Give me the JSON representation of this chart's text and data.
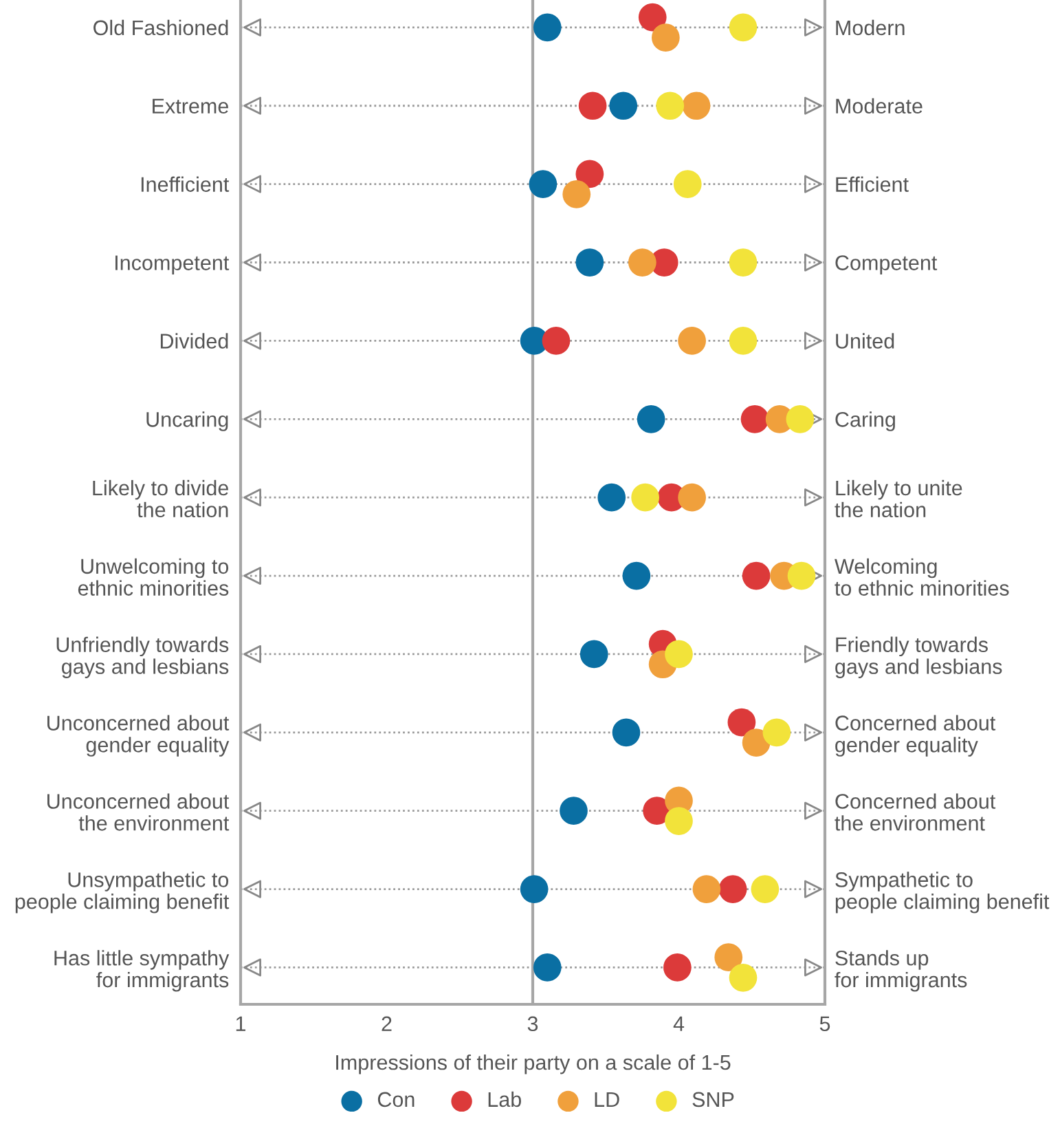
{
  "chart_data": {
    "type": "scatter",
    "orientation": "horizontal",
    "categories": [
      "Old Fashioned",
      "Extreme",
      "Inefficient",
      "Incompetent",
      "Divided",
      "Uncaring",
      "Likely to divide\nthe nation",
      "Unwelcoming to\nethnic minorities",
      "Unfriendly towards\ngays and lesbians",
      "Unconcerned about\ngender equality",
      "Unconcerned about\nthe environment",
      "Unsympathetic to\npeople claiming benefit",
      "Has little sympathy\nfor immigrants"
    ],
    "y2_categories": [
      "Modern",
      "Moderate",
      "Efficient",
      "Competent",
      "United",
      "Caring",
      "Likely to unite\nthe nation",
      "Welcoming\nto ethnic minorities",
      "Friendly towards\ngays and lesbians",
      "Concerned about\ngender equality",
      "Concerned about\nthe environment",
      "Sympathetic to\npeople claiming benefit",
      "Stands up\nfor immigrants"
    ],
    "series": [
      {
        "name": "Con",
        "color": "#0a6fa3",
        "values": [
          3.1,
          3.62,
          3.07,
          3.39,
          3.01,
          3.81,
          3.54,
          3.71,
          3.42,
          3.64,
          3.28,
          3.01,
          3.1
        ]
      },
      {
        "name": "Lab",
        "color": "#dc3a3a",
        "values": [
          3.82,
          3.41,
          3.39,
          3.9,
          3.16,
          4.52,
          3.95,
          4.53,
          3.89,
          4.43,
          3.85,
          4.37,
          3.99
        ]
      },
      {
        "name": "LD",
        "color": "#f0a03c",
        "values": [
          3.91,
          4.12,
          3.3,
          3.75,
          4.09,
          4.69,
          4.09,
          4.72,
          3.89,
          4.53,
          4.0,
          4.19,
          4.34
        ]
      },
      {
        "name": "SNP",
        "color": "#f2e33a",
        "values": [
          4.44,
          3.94,
          4.06,
          4.44,
          4.44,
          4.83,
          3.77,
          4.84,
          4.0,
          4.67,
          4.0,
          4.59,
          4.44
        ]
      }
    ],
    "xlim": [
      1,
      5
    ],
    "xticks": [
      1,
      2,
      3,
      4,
      5
    ],
    "xlabel": "Impressions of their party on a scale of 1-5",
    "ref_lines": [
      {
        "axis": "x",
        "value": 3,
        "color": "#a6a6a6"
      }
    ],
    "grid": "y",
    "legend": "bottom",
    "marker": "circle"
  }
}
